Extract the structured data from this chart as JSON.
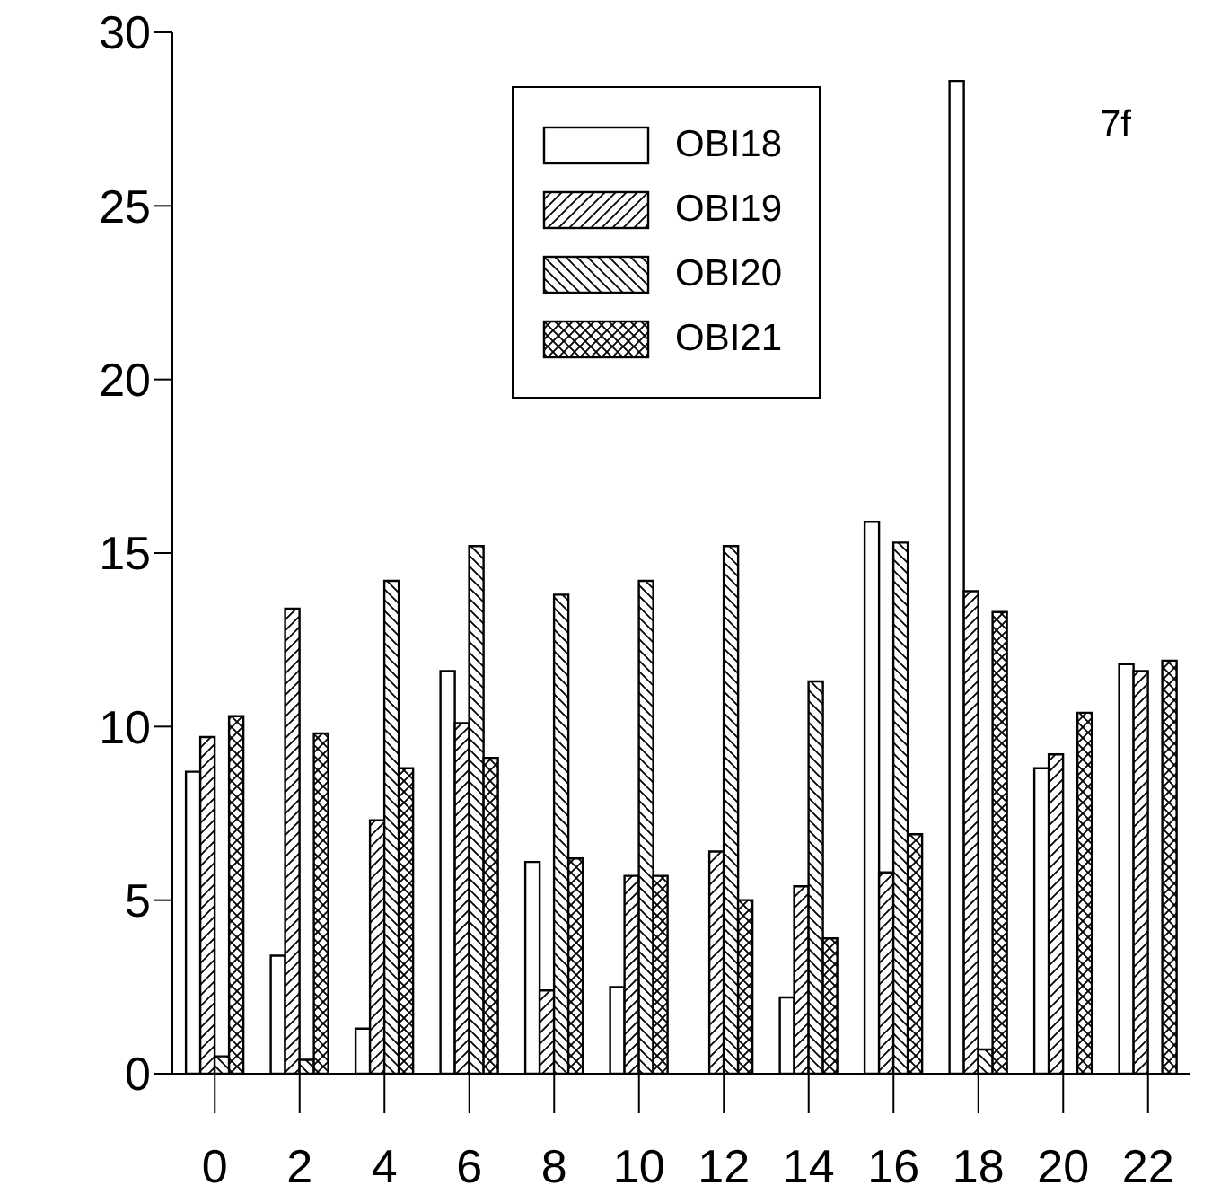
{
  "chart_data": {
    "type": "bar",
    "categories": [
      "0",
      "2",
      "4",
      "6",
      "8",
      "10",
      "12",
      "14",
      "16",
      "18",
      "20",
      "22"
    ],
    "series": [
      {
        "name": "OBI18",
        "color": "#000000",
        "values": [
          8.7,
          3.4,
          1.3,
          11.6,
          6.1,
          2.5,
          null,
          2.2,
          15.9,
          28.6,
          8.8,
          11.8
        ]
      },
      {
        "name": "OBI19",
        "color": "#000000",
        "values": [
          9.7,
          13.4,
          7.3,
          10.1,
          2.4,
          5.7,
          6.4,
          5.4,
          5.8,
          13.9,
          9.2,
          11.6
        ]
      },
      {
        "name": "OBI20",
        "color": "#000000",
        "values": [
          0.5,
          0.4,
          14.2,
          15.2,
          13.8,
          14.2,
          15.2,
          11.3,
          15.3,
          0.7,
          null,
          null
        ]
      },
      {
        "name": "OBI21",
        "color": "#000000",
        "values": [
          10.3,
          9.8,
          8.8,
          9.1,
          6.2,
          5.7,
          5.0,
          3.9,
          6.9,
          13.3,
          10.4,
          11.9
        ]
      }
    ],
    "ylim": [
      0,
      30
    ],
    "yticks": [
      0,
      5,
      10,
      15,
      20,
      25,
      30
    ],
    "legend": "top",
    "annotations": [
      "7f"
    ]
  }
}
